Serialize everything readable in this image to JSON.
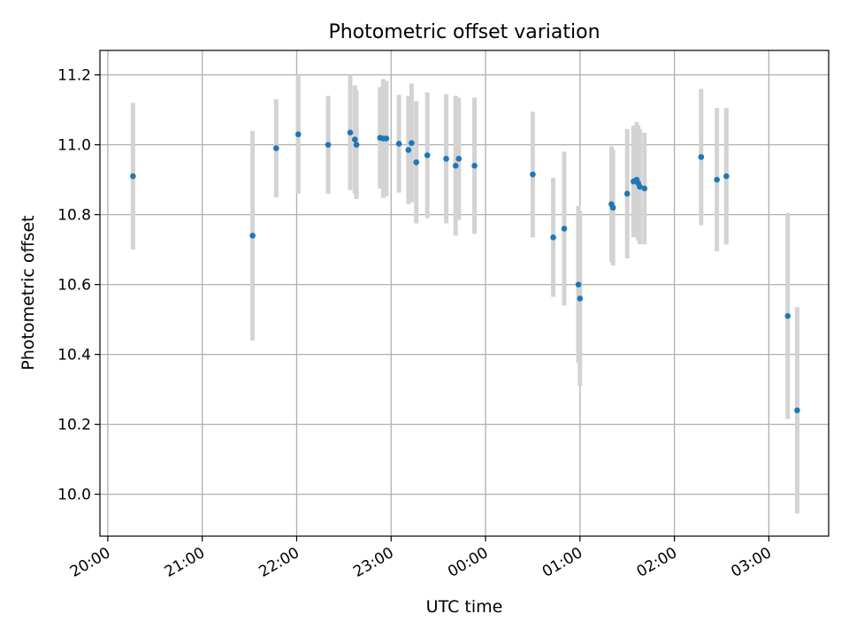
{
  "chart_data": {
    "type": "scatter",
    "title": "Photometric offset variation",
    "xlabel": "UTC time",
    "ylabel": "Photometric offset",
    "x_tick_labels": [
      "20:00",
      "21:00",
      "22:00",
      "23:00",
      "00:00",
      "01:00",
      "02:00",
      "03:00"
    ],
    "y_tick_labels": [
      "10.0",
      "10.2",
      "10.4",
      "10.6",
      "10.8",
      "11.0",
      "11.2"
    ],
    "xlim": [
      "19:55",
      "03:38"
    ],
    "ylim": [
      9.88,
      11.27
    ],
    "grid": true,
    "legend": "none",
    "colors": {
      "point": "#1f77b4",
      "errorbar": "#d3d3d3",
      "grid": "#b0b0b0"
    },
    "x": [
      "20:16",
      "21:32",
      "21:47",
      "22:01",
      "22:20",
      "22:34",
      "22:37",
      "22:38",
      "22:53",
      "22:55",
      "22:57",
      "23:05",
      "23:11",
      "23:13",
      "23:16",
      "23:23",
      "23:35",
      "23:41",
      "23:43",
      "23:53",
      "00:30",
      "00:43",
      "00:50",
      "00:59",
      "01:00",
      "01:20",
      "01:21",
      "01:30",
      "01:34",
      "01:36",
      "01:37",
      "01:38",
      "01:41",
      "02:17",
      "02:27",
      "02:33",
      "03:12",
      "03:18"
    ],
    "y": [
      10.91,
      10.74,
      10.99,
      11.03,
      11.0,
      11.035,
      11.015,
      11.0,
      11.02,
      11.018,
      11.018,
      11.003,
      10.985,
      11.005,
      10.95,
      10.97,
      10.96,
      10.94,
      10.96,
      10.94,
      10.915,
      10.735,
      10.76,
      10.6,
      10.56,
      10.83,
      10.82,
      10.86,
      10.895,
      10.9,
      10.89,
      10.88,
      10.875,
      10.965,
      10.9,
      10.91,
      10.51,
      10.24
    ],
    "error": [
      0.21,
      0.3,
      0.14,
      0.17,
      0.14,
      0.165,
      0.155,
      0.155,
      0.145,
      0.17,
      0.165,
      0.14,
      0.155,
      0.17,
      0.175,
      0.18,
      0.185,
      0.2,
      0.175,
      0.195,
      0.18,
      0.17,
      0.22,
      0.225,
      0.25,
      0.165,
      0.165,
      0.185,
      0.16,
      0.165,
      0.165,
      0.165,
      0.16,
      0.195,
      0.205,
      0.195,
      0.295,
      0.295
    ]
  }
}
